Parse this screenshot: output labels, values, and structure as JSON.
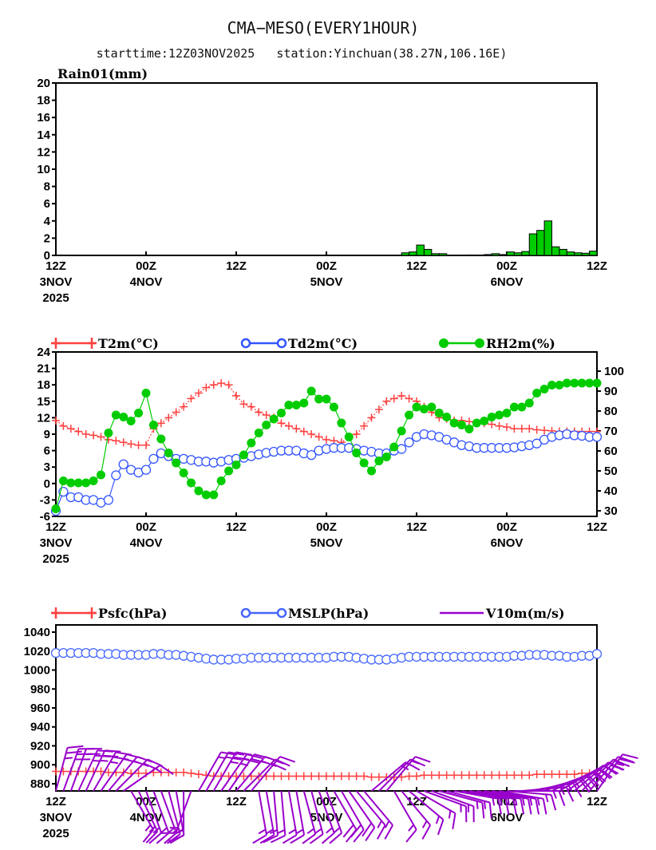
{
  "title": "CMA−MESO(EVERY1HOUR)",
  "subtitle": "starttime:12Z03NOV2025   station:Yinchuan(38.27N,106.16E)",
  "colors": {
    "t2m": "#ff4040",
    "td2m": "#3355ff",
    "rh2m": "#00cc00",
    "rain": "#00cc00",
    "mslp": "#4466ff",
    "psfc": "#ff4040",
    "wind": "#9900cc"
  },
  "x_axis": {
    "hours": 72,
    "ticks": [
      {
        "hour": 0,
        "line1": "12Z",
        "line2": "3NOV",
        "line3": "2025"
      },
      {
        "hour": 12,
        "line1": "00Z",
        "line2": "4NOV",
        "line3": ""
      },
      {
        "hour": 24,
        "line1": "12Z",
        "line2": "",
        "line3": ""
      },
      {
        "hour": 36,
        "line1": "00Z",
        "line2": "5NOV",
        "line3": ""
      },
      {
        "hour": 48,
        "line1": "12Z",
        "line2": "",
        "line3": ""
      },
      {
        "hour": 60,
        "line1": "00Z",
        "line2": "6NOV",
        "line3": ""
      },
      {
        "hour": 72,
        "line1": "12Z",
        "line2": "",
        "line3": ""
      }
    ]
  },
  "chart_data": [
    {
      "type": "bar",
      "title": "Rain01(mm)",
      "ylim": [
        0,
        20
      ],
      "yticks": [
        "0",
        "2",
        "4",
        "6",
        "8",
        "10",
        "12",
        "14",
        "16",
        "18",
        "20"
      ],
      "values": [
        0,
        0,
        0,
        0,
        0,
        0,
        0,
        0,
        0,
        0,
        0,
        0,
        0,
        0,
        0,
        0,
        0,
        0,
        0,
        0,
        0,
        0,
        0,
        0,
        0,
        0,
        0,
        0,
        0,
        0,
        0,
        0,
        0,
        0,
        0,
        0,
        0,
        0,
        0,
        0,
        0,
        0,
        0,
        0,
        0,
        0,
        0.3,
        0.4,
        1.2,
        0.7,
        0.2,
        0.2,
        0,
        0,
        0,
        0.05,
        0.05,
        0.1,
        0.2,
        0.1,
        0.4,
        0.3,
        0.45,
        2.5,
        2.9,
        4.0,
        1.0,
        0.7,
        0.4,
        0.3,
        0.25,
        0.5
      ]
    },
    {
      "type": "line",
      "ylim": [
        -6,
        24
      ],
      "yticks": [
        "-6",
        "-3",
        "0",
        "3",
        "6",
        "9",
        "12",
        "15",
        "18",
        "21",
        "24"
      ],
      "y2lim": [
        27.2,
        109.6
      ],
      "y2ticks": [
        "30",
        "40",
        "50",
        "60",
        "70",
        "80",
        "90",
        "100"
      ],
      "series": [
        {
          "name": "T2m(°C)",
          "axis": "left",
          "values": [
            11.5,
            10.5,
            10,
            9.5,
            9,
            8.8,
            8.5,
            8,
            7.8,
            7.5,
            7.2,
            7,
            7,
            10,
            11,
            12,
            13,
            14,
            15.5,
            16.5,
            17.5,
            18,
            18.3,
            18,
            16,
            14.5,
            14,
            13,
            12.5,
            12,
            11,
            10.5,
            10,
            9.5,
            9,
            8.5,
            8,
            7.8,
            7.5,
            8.5,
            9,
            10.5,
            12,
            13.5,
            15,
            15.5,
            16,
            15.5,
            15,
            14,
            13,
            12,
            11.8,
            11.5,
            11.5,
            11.3,
            11,
            11,
            10.8,
            10.5,
            10.3,
            10,
            10,
            10,
            9.8,
            9.7,
            9.6,
            9.5,
            9.5,
            9.5,
            9.5,
            9.5,
            9.5
          ]
        },
        {
          "name": "Td2m(°C)",
          "axis": "left",
          "values": [
            -5,
            -1.5,
            -2.5,
            -2.5,
            -3,
            -3,
            -3.5,
            -3,
            1.5,
            3.5,
            2.5,
            2,
            2.5,
            4.5,
            5.5,
            5,
            4.5,
            4.5,
            4.3,
            4,
            4,
            3.8,
            4,
            4.3,
            4.5,
            4.7,
            5,
            5.3,
            5.6,
            5.8,
            6,
            6,
            6,
            5.5,
            5.2,
            6,
            6.3,
            6.5,
            6.5,
            6.5,
            6.3,
            6,
            5.8,
            5.5,
            5.5,
            6,
            6.3,
            7.5,
            8.5,
            9,
            8.8,
            8.5,
            8,
            7.5,
            7,
            6.8,
            6.5,
            6.5,
            6.5,
            6.5,
            6.5,
            6.6,
            6.8,
            7,
            7.3,
            8,
            8.5,
            8.8,
            9,
            8.8,
            8.7,
            8.5,
            8.5
          ]
        },
        {
          "name": "RH2m(%)",
          "axis": "right",
          "values": [
            31,
            45,
            44,
            44,
            44,
            45,
            48,
            69,
            78,
            77,
            75,
            79,
            89,
            73,
            66,
            59,
            54,
            49,
            44,
            40,
            38,
            38,
            45,
            50,
            53,
            58,
            64,
            69,
            73,
            76,
            79,
            83,
            83,
            84,
            90,
            86,
            86,
            82,
            74,
            67,
            59,
            54,
            50,
            55,
            57,
            62,
            70,
            78,
            82,
            81,
            82,
            79,
            77,
            74,
            73,
            71,
            74,
            75,
            77,
            78,
            79,
            82,
            82,
            84,
            89,
            91,
            93,
            93,
            94,
            94,
            94,
            94,
            94
          ]
        }
      ]
    },
    {
      "type": "line",
      "ylim": [
        872.4,
        1047.6
      ],
      "yticks": [
        "880",
        "900",
        "920",
        "940",
        "960",
        "980",
        "1000",
        "1020",
        "1040"
      ],
      "series": [
        {
          "name": "Psfc(hPa)",
          "values": [
            893,
            893,
            893,
            893,
            893,
            893,
            893,
            892,
            892,
            892,
            891,
            891,
            891,
            892,
            892,
            892,
            892,
            892,
            891,
            890,
            889,
            888,
            888,
            888,
            888,
            888,
            888,
            888,
            888,
            888,
            888,
            888,
            888,
            888,
            888,
            888,
            888,
            888,
            888,
            888,
            888,
            888,
            887,
            887,
            887,
            887,
            887,
            888,
            888,
            889,
            889,
            889,
            889,
            889,
            889,
            889,
            889,
            889,
            889,
            889,
            889,
            889,
            889,
            889,
            890,
            890,
            890,
            890,
            890,
            890,
            891,
            891,
            891
          ]
        },
        {
          "name": "MSLP(hPa)",
          "values": [
            1018,
            1018,
            1018,
            1018,
            1018,
            1018,
            1017,
            1017,
            1017,
            1016,
            1016,
            1016,
            1016,
            1017,
            1017,
            1016,
            1016,
            1015,
            1014,
            1013,
            1012,
            1011,
            1011,
            1011,
            1012,
            1012,
            1013,
            1013,
            1013,
            1013,
            1013,
            1013,
            1013,
            1013,
            1013,
            1013,
            1013,
            1014,
            1014,
            1014,
            1013,
            1012,
            1011,
            1011,
            1011,
            1012,
            1013,
            1014,
            1014,
            1014,
            1014,
            1014,
            1014,
            1014,
            1014,
            1014,
            1014,
            1014,
            1014,
            1014,
            1014,
            1015,
            1015,
            1016,
            1016,
            1016,
            1015,
            1015,
            1014,
            1014,
            1015,
            1015,
            1017
          ]
        },
        {
          "name": "V10m(m/s)",
          "type": "barbs",
          "direction_deg": [
            15,
            20,
            20,
            25,
            25,
            30,
            35,
            40,
            45,
            55,
            150,
            155,
            160,
            160,
            160,
            165,
            170,
            180,
            200,
            30,
            30,
            30,
            35,
            35,
            40,
            45,
            40,
            170,
            170,
            175,
            175,
            170,
            170,
            165,
            165,
            160,
            160,
            150,
            150,
            145,
            140,
            140,
            50,
            45,
            40,
            150,
            140,
            130,
            120,
            110,
            110,
            105,
            105,
            100,
            100,
            100,
            100,
            100,
            100,
            100,
            95,
            90,
            85,
            80,
            75,
            70,
            65,
            60,
            55,
            50,
            45,
            40,
            35
          ],
          "speed": [
            5,
            5,
            5,
            5,
            5,
            5,
            4,
            4,
            4,
            3,
            3,
            3,
            3,
            3,
            3,
            3,
            3,
            3,
            3,
            3,
            4,
            5,
            5,
            4,
            4,
            4,
            3,
            3,
            3,
            3,
            3,
            3,
            3,
            3,
            3,
            3,
            3,
            4,
            4,
            4,
            3,
            3,
            3,
            3,
            3,
            3,
            3,
            3,
            3,
            3,
            3,
            3,
            3,
            3,
            3,
            3,
            3,
            3,
            3,
            3,
            3,
            3,
            3,
            3,
            3,
            4,
            4,
            4,
            5,
            5,
            5,
            5,
            5
          ]
        }
      ]
    }
  ]
}
